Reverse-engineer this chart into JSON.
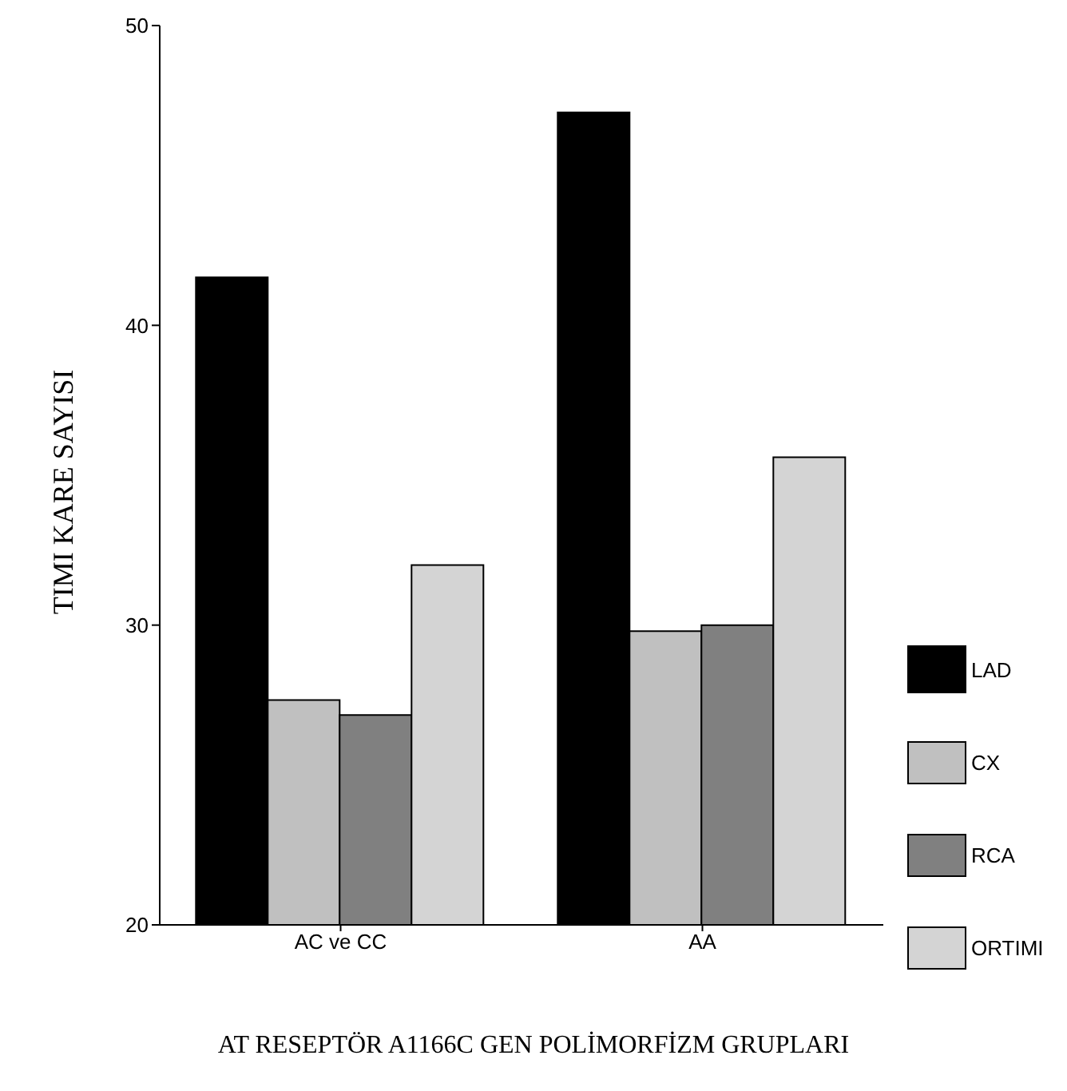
{
  "chart_data": {
    "type": "bar",
    "xlabel": "AT RESEPTÖR A1166C GEN POLİMORFİZM GRUPLARI",
    "ylabel": "TIMI KARE SAYISI",
    "categories": [
      "AC ve CC",
      "AA"
    ],
    "series": [
      {
        "name": "LAD",
        "color": "#000000",
        "values": [
          41.6,
          47.1
        ]
      },
      {
        "name": "CX",
        "color": "#c0c0c0",
        "values": [
          27.5,
          29.8
        ]
      },
      {
        "name": "RCA",
        "color": "#808080",
        "values": [
          27.0,
          30.0
        ]
      },
      {
        "name": "ORTIMI",
        "color": "#d4d4d4",
        "values": [
          32.0,
          35.6
        ]
      }
    ],
    "ylim": [
      20,
      50
    ],
    "yticks": [
      20,
      30,
      40,
      50
    ],
    "grid": false,
    "legend": "right"
  }
}
